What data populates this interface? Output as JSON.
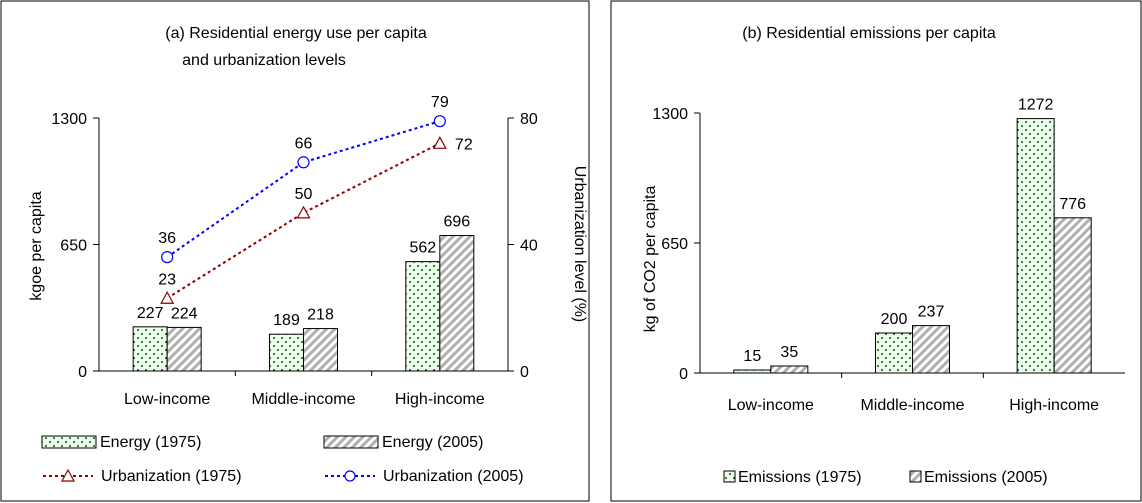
{
  "colors": {
    "energy_1975_fill": "#e6ffe6",
    "hatch": "#b0b0b0",
    "urban_1975": "#8b0000",
    "urban_2005": "#0000ff"
  },
  "chart_data": [
    {
      "id": "a",
      "type": "bar",
      "title_line1": "(a) Residential energy use per capita",
      "title_line2": "and urbanization levels",
      "categories": [
        "Low-income",
        "Middle-income",
        "High-income"
      ],
      "ylabel": "kgoe per capita",
      "y2label": "Urbanization level (%)",
      "ylim": [
        0,
        1300
      ],
      "yticks": [
        "0",
        "650",
        "1300"
      ],
      "y2lim": [
        0,
        80
      ],
      "y2ticks": [
        "0",
        "40",
        "80"
      ],
      "series": [
        {
          "name": "Energy (1975)",
          "values": [
            227,
            189,
            562
          ],
          "style": "dotted-green"
        },
        {
          "name": "Energy (2005)",
          "values": [
            224,
            218,
            696
          ],
          "style": "hatched-gray"
        }
      ],
      "lines": [
        {
          "name": "Urbanization (1975)",
          "values": [
            23,
            50,
            72
          ],
          "marker": "triangle",
          "axis": "right"
        },
        {
          "name": "Urbanization (2005)",
          "values": [
            36,
            66,
            79
          ],
          "marker": "circle",
          "axis": "right"
        }
      ],
      "legend": "bottom"
    },
    {
      "id": "b",
      "type": "bar",
      "title": "(b) Residential emissions per capita",
      "categories": [
        "Low-income",
        "Middle-income",
        "High-income"
      ],
      "ylabel": "kg of CO2 per capita",
      "ylim": [
        0,
        1300
      ],
      "yticks": [
        "0",
        "650",
        "1300"
      ],
      "series": [
        {
          "name": "Emissions (1975)",
          "values": [
            15,
            200,
            1272
          ],
          "style": "dotted-green"
        },
        {
          "name": "Emissions (2005)",
          "values": [
            35,
            237,
            776
          ],
          "style": "hatched-gray"
        }
      ],
      "legend": "bottom"
    }
  ]
}
